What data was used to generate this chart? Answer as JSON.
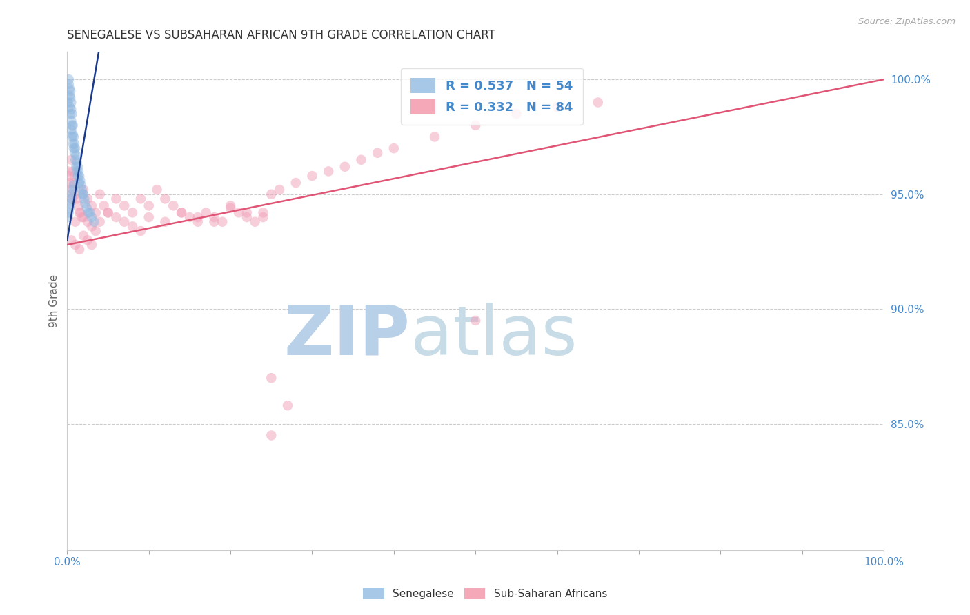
{
  "title": "SENEGALESE VS SUBSAHARAN AFRICAN 9TH GRADE CORRELATION CHART",
  "source": "Source: ZipAtlas.com",
  "ylabel": "9th Grade",
  "y_ticks_right": [
    "100.0%",
    "95.0%",
    "90.0%",
    "85.0%"
  ],
  "y_ticks_right_vals": [
    1.0,
    0.95,
    0.9,
    0.85
  ],
  "legend_label1": "R = 0.537   N = 54",
  "legend_label2": "R = 0.332   N = 84",
  "legend_color1": "#a8c8e8",
  "legend_color2": "#f4a8b8",
  "scatter_color_blue": "#90b8e0",
  "scatter_color_pink": "#f0a0b8",
  "line_color_blue": "#1a3a8c",
  "line_color_pink": "#e05575",
  "bg_color": "#ffffff",
  "grid_color": "#cccccc",
  "title_color": "#333333",
  "source_color": "#aaaaaa",
  "axis_label_color": "#666666",
  "tick_label_color": "#4488cc",
  "watermark_zip_color": "#b8d0e8",
  "watermark_atlas_color": "#c8dce8",
  "blue_points_x": [
    0.001,
    0.002,
    0.002,
    0.003,
    0.003,
    0.003,
    0.004,
    0.004,
    0.004,
    0.005,
    0.005,
    0.005,
    0.005,
    0.006,
    0.006,
    0.006,
    0.007,
    0.007,
    0.007,
    0.008,
    0.008,
    0.009,
    0.009,
    0.01,
    0.01,
    0.011,
    0.011,
    0.012,
    0.012,
    0.013,
    0.013,
    0.014,
    0.015,
    0.015,
    0.016,
    0.017,
    0.018,
    0.019,
    0.02,
    0.021,
    0.022,
    0.024,
    0.026,
    0.028,
    0.03,
    0.033,
    0.001,
    0.002,
    0.003,
    0.004,
    0.005,
    0.006,
    0.007,
    0.008
  ],
  "blue_points_y": [
    0.99,
    0.998,
    1.0,
    0.996,
    0.993,
    0.988,
    0.995,
    0.992,
    0.985,
    0.99,
    0.987,
    0.982,
    0.978,
    0.985,
    0.98,
    0.975,
    0.98,
    0.976,
    0.972,
    0.975,
    0.97,
    0.972,
    0.968,
    0.97,
    0.965,
    0.967,
    0.962,
    0.964,
    0.96,
    0.962,
    0.958,
    0.96,
    0.958,
    0.955,
    0.956,
    0.954,
    0.952,
    0.95,
    0.95,
    0.948,
    0.946,
    0.944,
    0.942,
    0.942,
    0.94,
    0.938,
    0.94,
    0.942,
    0.944,
    0.946,
    0.948,
    0.95,
    0.952,
    0.954
  ],
  "pink_points_x": [
    0.001,
    0.002,
    0.003,
    0.004,
    0.005,
    0.006,
    0.007,
    0.008,
    0.009,
    0.01,
    0.012,
    0.014,
    0.016,
    0.018,
    0.02,
    0.025,
    0.03,
    0.035,
    0.04,
    0.045,
    0.05,
    0.06,
    0.07,
    0.08,
    0.09,
    0.1,
    0.11,
    0.12,
    0.13,
    0.14,
    0.15,
    0.16,
    0.17,
    0.18,
    0.19,
    0.2,
    0.21,
    0.22,
    0.23,
    0.24,
    0.01,
    0.015,
    0.02,
    0.025,
    0.03,
    0.035,
    0.04,
    0.05,
    0.06,
    0.07,
    0.08,
    0.09,
    0.1,
    0.12,
    0.14,
    0.16,
    0.18,
    0.2,
    0.22,
    0.24,
    0.005,
    0.01,
    0.015,
    0.02,
    0.025,
    0.03,
    0.25,
    0.26,
    0.28,
    0.3,
    0.32,
    0.34,
    0.36,
    0.38,
    0.4,
    0.45,
    0.5,
    0.55,
    0.6,
    0.65,
    0.5,
    0.25,
    0.25,
    0.27
  ],
  "pink_points_y": [
    0.96,
    0.958,
    0.955,
    0.952,
    0.965,
    0.948,
    0.96,
    0.955,
    0.958,
    0.95,
    0.948,
    0.945,
    0.942,
    0.94,
    0.952,
    0.948,
    0.945,
    0.942,
    0.95,
    0.945,
    0.942,
    0.948,
    0.945,
    0.942,
    0.948,
    0.945,
    0.952,
    0.948,
    0.945,
    0.942,
    0.94,
    0.938,
    0.942,
    0.94,
    0.938,
    0.945,
    0.942,
    0.94,
    0.938,
    0.942,
    0.938,
    0.942,
    0.94,
    0.938,
    0.936,
    0.934,
    0.938,
    0.942,
    0.94,
    0.938,
    0.936,
    0.934,
    0.94,
    0.938,
    0.942,
    0.94,
    0.938,
    0.944,
    0.942,
    0.94,
    0.93,
    0.928,
    0.926,
    0.932,
    0.93,
    0.928,
    0.95,
    0.952,
    0.955,
    0.958,
    0.96,
    0.962,
    0.965,
    0.968,
    0.97,
    0.975,
    0.98,
    0.985,
    0.988,
    0.99,
    0.895,
    0.87,
    0.845,
    0.858
  ],
  "blue_line_x": [
    0.0,
    0.033
  ],
  "blue_line_y_start": 0.93,
  "blue_line_y_end": 1.0,
  "pink_line_x": [
    0.0,
    1.0
  ],
  "pink_line_y_start": 0.928,
  "pink_line_y_end": 1.0,
  "xlim": [
    0.0,
    1.0
  ],
  "ylim": [
    0.795,
    1.012
  ],
  "scatter_size": 110,
  "scatter_alpha": 0.5,
  "line_width": 1.8,
  "bottom_tick_positions": [
    0.0,
    0.1,
    0.2,
    0.3,
    0.4,
    0.5,
    0.6,
    0.7,
    0.8,
    0.9,
    1.0
  ]
}
